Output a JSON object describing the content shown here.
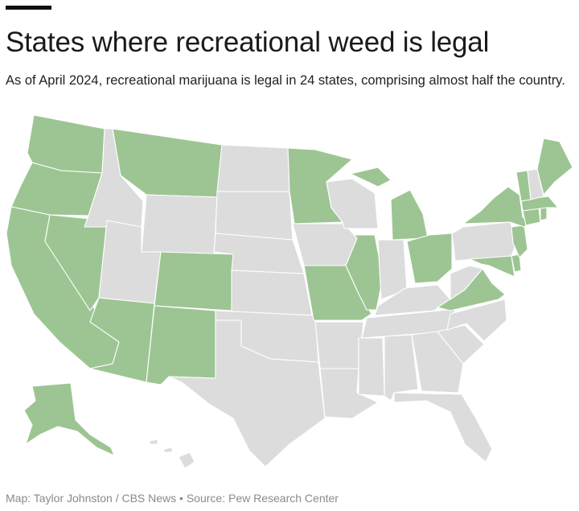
{
  "title": "States where recreational weed is legal",
  "subtitle": "As of April 2024, recreational marijuana is legal in 24 states, comprising almost half the country.",
  "credit": "Map: Taylor Johnston / CBS News • Source: Pew Research Center",
  "colors": {
    "legal": "#9dc593",
    "not_legal": "#dcdcdc",
    "background": "#ffffff",
    "accent_bar": "#111111"
  },
  "map": {
    "region": "United States",
    "legal_states": [
      "Washington",
      "Oregon",
      "California",
      "Nevada",
      "Arizona",
      "Montana",
      "Colorado",
      "New Mexico",
      "Minnesota",
      "Michigan",
      "Illinois",
      "Missouri",
      "Ohio",
      "Virginia",
      "Maryland",
      "Delaware",
      "New Jersey",
      "New York",
      "Connecticut",
      "Rhode Island",
      "Massachusetts",
      "Vermont",
      "Maine",
      "Alaska"
    ]
  }
}
